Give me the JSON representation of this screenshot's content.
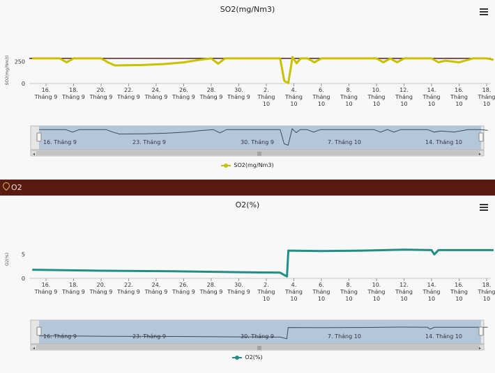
{
  "section_header": {
    "label": "O2"
  },
  "icons": {
    "menu": "menu-icon",
    "location": "map-pin-icon"
  },
  "colors": {
    "so2_series": "#c9c200",
    "o2_series": "#1f8f86",
    "section_bar": "#5b1a10",
    "navigator_fill": "#a9c1d6",
    "threshold_line": "#5a1a1a"
  },
  "x_ticks": [
    {
      "day": "16.",
      "month": "Tháng 9"
    },
    {
      "day": "18.",
      "month": "Tháng 9"
    },
    {
      "day": "20.",
      "month": "Tháng 9"
    },
    {
      "day": "22.",
      "month": "Tháng 9"
    },
    {
      "day": "24.",
      "month": "Tháng 9"
    },
    {
      "day": "26.",
      "month": "Tháng 9"
    },
    {
      "day": "28.",
      "month": "Tháng 9"
    },
    {
      "day": "30.",
      "month": "Tháng 9"
    },
    {
      "day": "2.",
      "month": "Tháng 10"
    },
    {
      "day": "4.",
      "month": "Tháng 10"
    },
    {
      "day": "6.",
      "month": "Tháng 10"
    },
    {
      "day": "8.",
      "month": "Tháng 10"
    },
    {
      "day": "10.",
      "month": "Tháng 10"
    },
    {
      "day": "12.",
      "month": "Tháng 10"
    },
    {
      "day": "14.",
      "month": "Tháng 10"
    },
    {
      "day": "16.",
      "month": "Tháng 10"
    },
    {
      "day": "18.",
      "month": "Tháng 10"
    }
  ],
  "navigator_labels": [
    "16. Tháng 9",
    "23. Tháng 9",
    "30. Tháng 9",
    "7. Tháng 10",
    "14. Tháng 10"
  ],
  "chart_data": [
    {
      "type": "line",
      "title": "SO2(mg/Nm3)",
      "ylabel": "SO2(mg/Nm3)",
      "yticks": [
        "0",
        "250"
      ],
      "ylim": [
        0,
        300
      ],
      "legend": "SO2(mg/Nm3)",
      "series": [
        {
          "name": "SO2(mg/Nm3)",
          "x": [
            "2023-09-15",
            "2023-09-17",
            "2023-09-17.5",
            "2023-09-18",
            "2023-09-20",
            "2023-09-20.5",
            "2023-09-21",
            "2023-09-23",
            "2023-09-24.5",
            "2023-09-26",
            "2023-09-27",
            "2023-09-28",
            "2023-09-28.5",
            "2023-09-29",
            "2023-09-30",
            "2023-10-02",
            "2023-10-03",
            "2023-10-03.3",
            "2023-10-03.6",
            "2023-10-03.9",
            "2023-10-04.2",
            "2023-10-04.5",
            "2023-10-05",
            "2023-10-05.5",
            "2023-10-06",
            "2023-10-09",
            "2023-10-10",
            "2023-10-10.5",
            "2023-10-11",
            "2023-10-11.5",
            "2023-10-12",
            "2023-10-14",
            "2023-10-14.5",
            "2023-10-15",
            "2023-10-16",
            "2023-10-17",
            "2023-10-18",
            "2023-10-18.5"
          ],
          "values": [
            285,
            285,
            240,
            285,
            285,
            240,
            205,
            210,
            220,
            240,
            265,
            285,
            225,
            285,
            285,
            285,
            285,
            30,
            5,
            300,
            230,
            285,
            285,
            240,
            285,
            285,
            285,
            240,
            285,
            240,
            285,
            285,
            240,
            260,
            240,
            285,
            285,
            270
          ]
        }
      ]
    },
    {
      "type": "line",
      "title": "O2(%)",
      "ylabel": "O2(%)",
      "yticks": [
        "0",
        "5"
      ],
      "ylim": [
        0,
        8
      ],
      "legend": "O2(%)",
      "series": [
        {
          "name": "O2(%)",
          "x": [
            "2023-09-15",
            "2023-09-20",
            "2023-09-25",
            "2023-09-30",
            "2023-10-03",
            "2023-10-03.5",
            "2023-10-03.6",
            "2023-10-06",
            "2023-10-09",
            "2023-10-12",
            "2023-10-14",
            "2023-10-14.2",
            "2023-10-14.5",
            "2023-10-18.5"
          ],
          "values": [
            1.8,
            1.6,
            1.5,
            1.3,
            1.2,
            0.4,
            5.8,
            5.7,
            5.8,
            6.0,
            5.9,
            5.0,
            5.9,
            5.9
          ]
        }
      ]
    }
  ]
}
